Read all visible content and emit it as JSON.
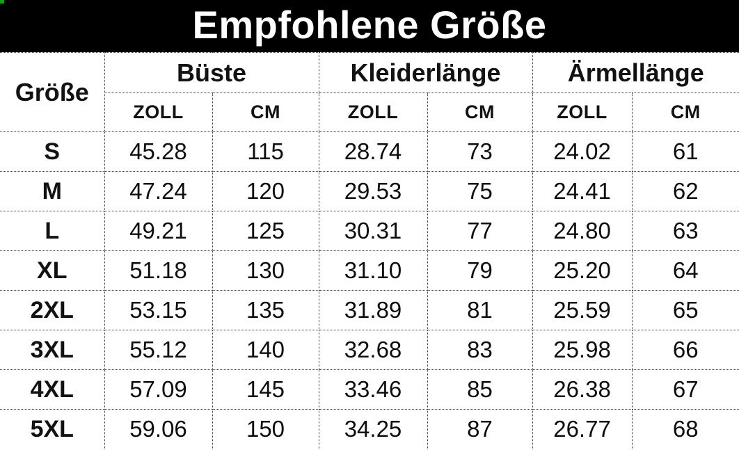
{
  "chart_data": {
    "type": "table",
    "title": "Empfohlene Größe",
    "corner_header": "Größe",
    "column_groups": [
      "Büste",
      "Kleiderlänge",
      "Ärmellänge"
    ],
    "unit_row": [
      "ZOLL",
      "CM",
      "ZOLL",
      "CM",
      "ZOLL",
      "CM"
    ],
    "rows": [
      {
        "size": "S",
        "values": [
          "45.28",
          "115",
          "28.74",
          "73",
          "24.02",
          "61"
        ]
      },
      {
        "size": "M",
        "values": [
          "47.24",
          "120",
          "29.53",
          "75",
          "24.41",
          "62"
        ]
      },
      {
        "size": "L",
        "values": [
          "49.21",
          "125",
          "30.31",
          "77",
          "24.80",
          "63"
        ]
      },
      {
        "size": "XL",
        "values": [
          "51.18",
          "130",
          "31.10",
          "79",
          "25.20",
          "64"
        ]
      },
      {
        "size": "2XL",
        "values": [
          "53.15",
          "135",
          "31.89",
          "81",
          "25.59",
          "65"
        ]
      },
      {
        "size": "3XL",
        "values": [
          "55.12",
          "140",
          "32.68",
          "83",
          "25.98",
          "66"
        ]
      },
      {
        "size": "4XL",
        "values": [
          "57.09",
          "145",
          "33.46",
          "85",
          "26.38",
          "67"
        ]
      },
      {
        "size": "5XL",
        "values": [
          "59.06",
          "150",
          "34.25",
          "87",
          "26.77",
          "68"
        ]
      }
    ]
  },
  "colors": {
    "banner_bg": "#000000",
    "banner_text": "#ffffff",
    "table_text": "#121212",
    "border_dotted": "#3c3c3c",
    "background": "#ffffff",
    "corner_artifact_green": "#18a018"
  }
}
